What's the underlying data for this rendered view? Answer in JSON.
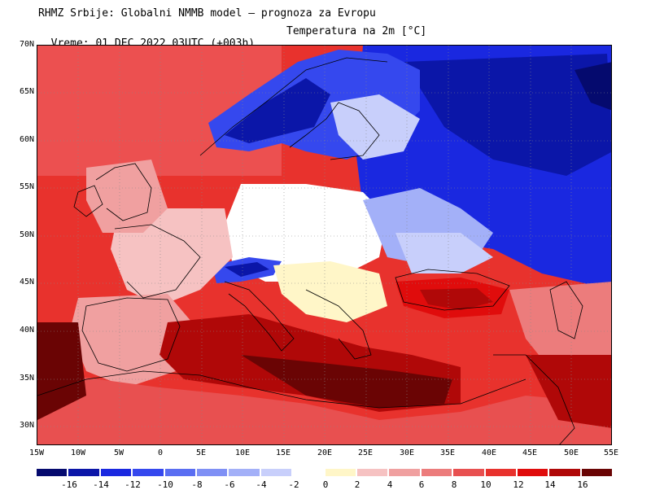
{
  "header": {
    "title": "RHMZ Srbije: Globalni NMMB model – prognoza za Evropu",
    "valid_time": "Vreme: 01 DEC 2022 03UTC (+003h)",
    "parameter": "Temperatura na 2m [°C]"
  },
  "map": {
    "lat_labels": [
      "70N",
      "65N",
      "60N",
      "55N",
      "50N",
      "45N",
      "40N",
      "35N",
      "30N"
    ],
    "lon_labels": [
      "15W",
      "10W",
      "5W",
      "0",
      "5E",
      "10E",
      "15E",
      "20E",
      "25E",
      "30E",
      "35E",
      "40E",
      "45E",
      "50E",
      "55E"
    ],
    "lat_range": [
      28,
      70
    ],
    "lon_range": [
      -15,
      55
    ]
  },
  "legend": {
    "labels": [
      "-16",
      "-14",
      "-12",
      "-10",
      "-8",
      "-6",
      "-4",
      "-2",
      "0",
      "2",
      "4",
      "6",
      "8",
      "10",
      "12",
      "14",
      "16"
    ],
    "colors": [
      "#050a6e",
      "#0b16a8",
      "#1a28e0",
      "#3548ee",
      "#5a6ef2",
      "#7f90f5",
      "#a3b0f8",
      "#c8cffb",
      "#ffffff",
      "#fff6c8",
      "#f6c2c2",
      "#f0a0a0",
      "#ec7c7c",
      "#e85050",
      "#e8322d",
      "#e00c0c",
      "#b00808",
      "#6a0404"
    ]
  }
}
